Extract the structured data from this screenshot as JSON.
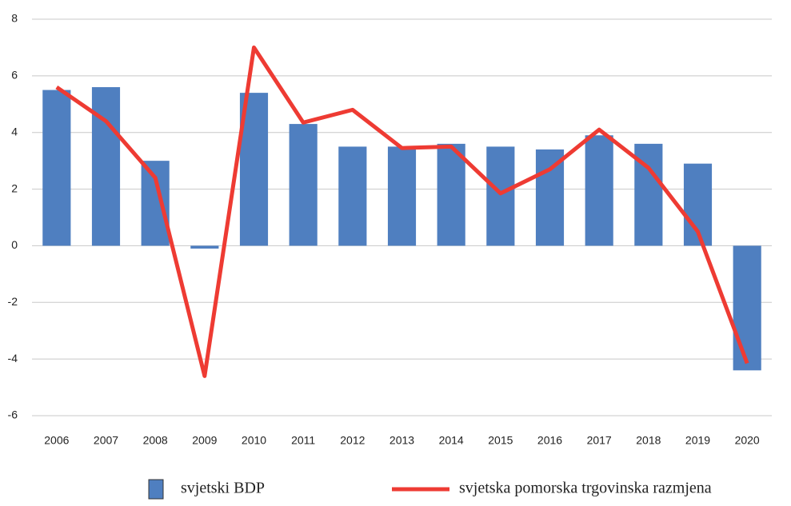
{
  "chart_data": {
    "type": "bar_line",
    "categories": [
      "2006",
      "2007",
      "2008",
      "2009",
      "2010",
      "2011",
      "2012",
      "2013",
      "2014",
      "2015",
      "2016",
      "2017",
      "2018",
      "2019",
      "2020"
    ],
    "series": [
      {
        "name": "svjetski BDP",
        "color": "#4f7fc0",
        "type": "bar",
        "values": [
          5.5,
          5.6,
          3.0,
          -0.1,
          5.4,
          4.3,
          3.5,
          3.5,
          3.6,
          3.5,
          3.4,
          3.9,
          3.6,
          2.9,
          -4.4
        ]
      },
      {
        "name": "svjetska pomorska trgovinska razmjena",
        "color": "#ee3b33",
        "type": "line",
        "values": [
          5.6,
          4.4,
          2.4,
          -4.6,
          7.0,
          4.35,
          4.8,
          3.45,
          3.5,
          1.85,
          2.7,
          4.1,
          2.75,
          0.5,
          -4.15
        ]
      }
    ],
    "ylim": [
      -6,
      8
    ],
    "yticks": [
      -6,
      -4,
      -2,
      0,
      2,
      4,
      6,
      8
    ],
    "grid": true,
    "legend": "bottom"
  }
}
